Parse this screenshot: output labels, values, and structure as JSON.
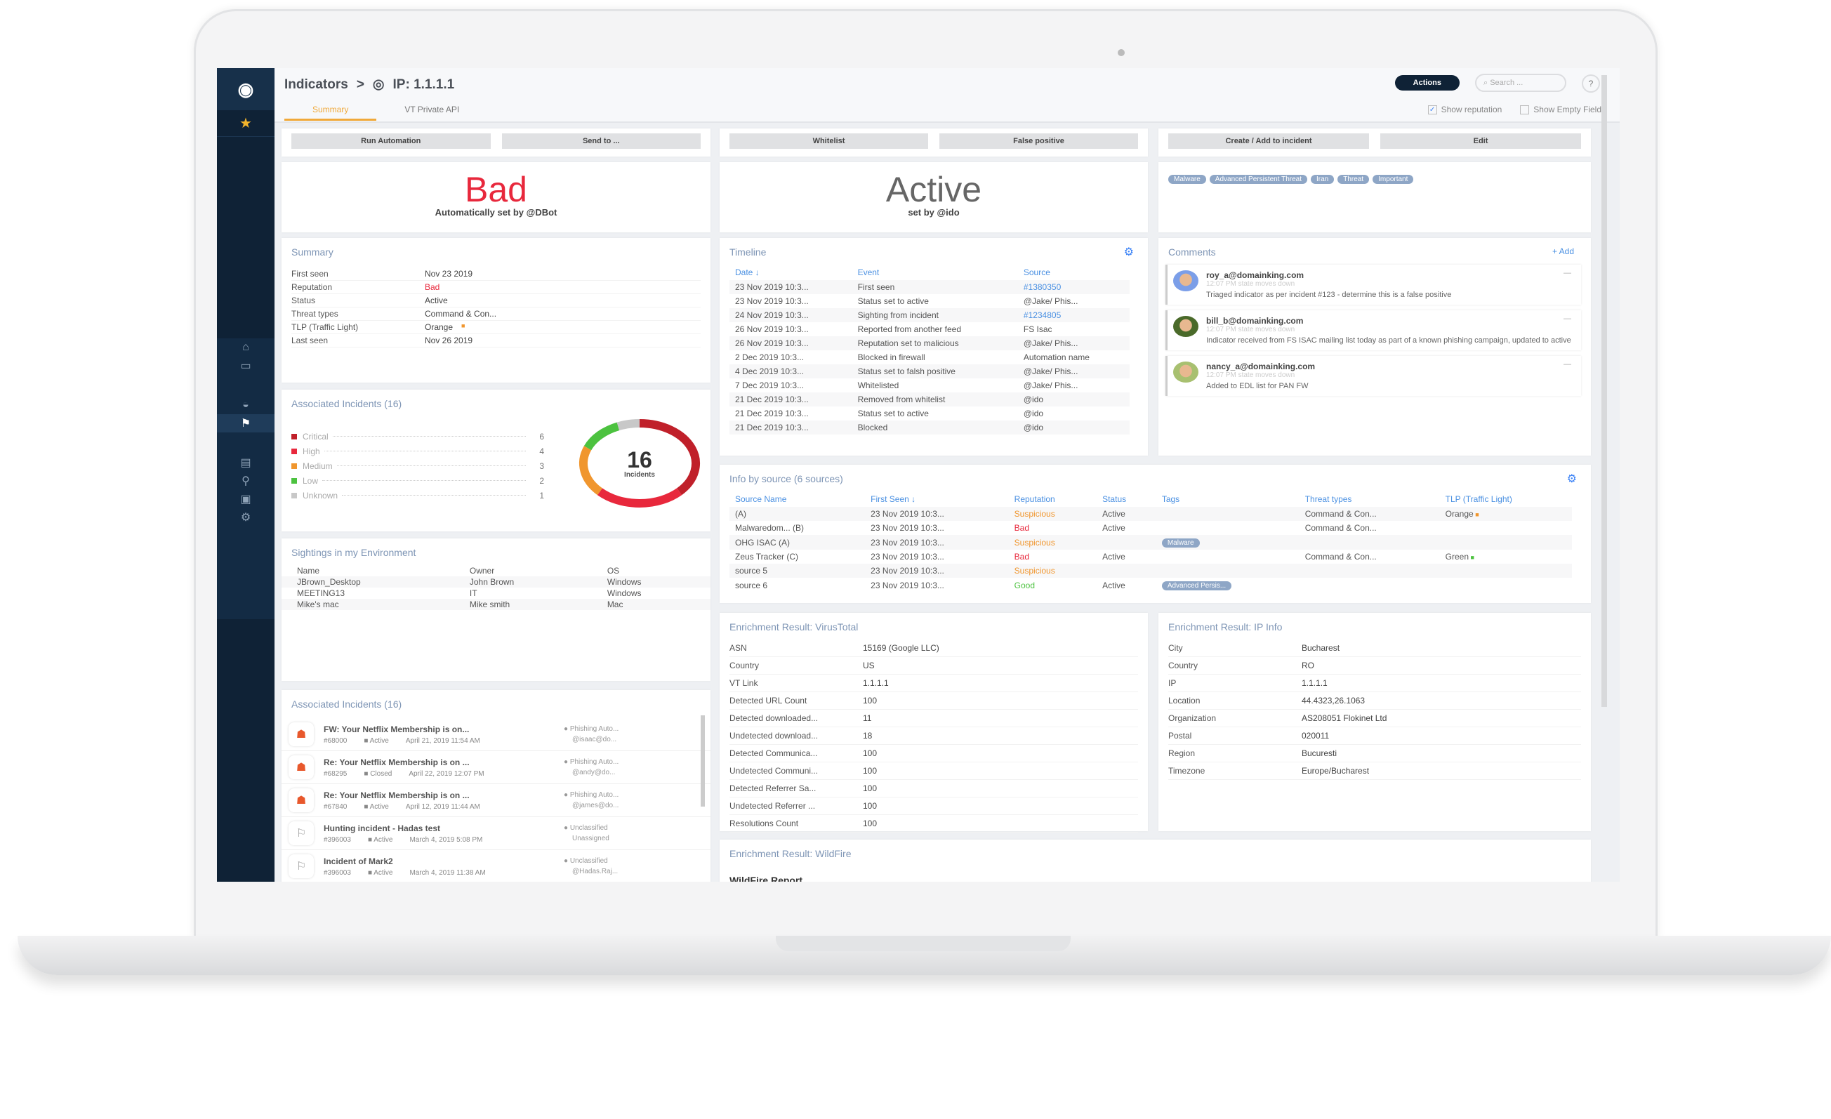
{
  "header": {
    "breadcrumb_root": "Indicators",
    "breadcrumb_sep": ">",
    "indicator": "IP: 1.1.1.1",
    "tabs": [
      {
        "label": "Summary"
      },
      {
        "label": "VT Private API"
      }
    ],
    "actions_label": "Actions",
    "search_placeholder": "Search ...",
    "help": "?",
    "show_reputation": "Show reputation",
    "show_empty_fields": "Show Empty Fields"
  },
  "buttons": {
    "run_automation": "Run Automation",
    "send_to": "Send to ...",
    "whitelist": "Whitelist",
    "false_positive": "False positive",
    "create_add": "Create / Add to incident",
    "edit": "Edit"
  },
  "verdict": {
    "reputation": "Bad",
    "reputation_by": "Automatically set by @DBot",
    "status": "Active",
    "status_by": "set by @ido",
    "reputation_color": "#e8283c"
  },
  "tags": [
    "Malware",
    "Advanced Persistent Threat",
    "Iran",
    "Threat",
    "Important"
  ],
  "summary": {
    "title": "Summary",
    "rows": [
      [
        "First seen",
        "Nov 23 2019"
      ],
      [
        "Reputation",
        "Bad"
      ],
      [
        "Status",
        "Active"
      ],
      [
        "Threat types",
        "Command & Con..."
      ],
      [
        "TLP (Traffic Light)",
        "Orange"
      ],
      [
        "Last seen",
        "Nov 26 2019"
      ]
    ]
  },
  "incidents_chart": {
    "title": "Associated Incidents  (16)",
    "total": "16",
    "total_label": "Incidents",
    "chart_data": {
      "type": "pie",
      "categories": [
        "Critical",
        "High",
        "Medium",
        "Low",
        "Unknown"
      ],
      "values": [
        6,
        4,
        3,
        2,
        1
      ],
      "colors": [
        "#c0202a",
        "#e8283c",
        "#f0962e",
        "#4cc23f",
        "#c8c8c8"
      ]
    }
  },
  "sightings": {
    "title": "Sightings in my Environment",
    "columns": [
      "Name",
      "Owner",
      "OS"
    ],
    "rows": [
      [
        "JBrown_Desktop",
        "John Brown",
        "Windows"
      ],
      [
        "MEETING13",
        "IT",
        "Windows"
      ],
      [
        "Mike's mac",
        "Mike smith",
        "Mac"
      ]
    ]
  },
  "incidents_list": {
    "title": "Associated Incidents  (16)",
    "items": [
      {
        "name": "FW: Your Netflix Membership is on...",
        "id": "#68000",
        "status": "Active",
        "date": "April 21, 2019 11:54 AM",
        "type": "Phishing Auto...",
        "owner": "@isaac@do...",
        "kind": "phishing"
      },
      {
        "name": "Re: Your Netflix Membership is on ...",
        "id": "#68295",
        "status": "Closed",
        "date": "April 22, 2019 12:07 PM",
        "type": "Phishing Auto...",
        "owner": "@andy@do...",
        "kind": "phishing"
      },
      {
        "name": "Re: Your Netflix Membership is on ...",
        "id": "#67840",
        "status": "Active",
        "date": "April 12, 2019 11:44 AM",
        "type": "Phishing Auto...",
        "owner": "@james@do...",
        "kind": "phishing"
      },
      {
        "name": "Hunting incident - Hadas test",
        "id": "#396003",
        "status": "Active",
        "date": "March 4, 2019 5:08 PM",
        "type": "Unclassified",
        "owner": "Unassigned",
        "kind": "other"
      },
      {
        "name": "Incident of Mark2",
        "id": "#396003",
        "status": "Active",
        "date": "March 4, 2019 11:38 AM",
        "type": "Unclassified",
        "owner": "@Hadas.Raj...",
        "kind": "other"
      }
    ]
  },
  "timeline": {
    "title": "Timeline",
    "columns": [
      "Date",
      "Event",
      "Source"
    ],
    "rows": [
      [
        "23 Nov 2019 10:3...",
        "First seen",
        "#1380350"
      ],
      [
        "23 Nov 2019 10:3...",
        "Status set to active",
        "@Jake/ Phis..."
      ],
      [
        "24 Nov 2019 10:3...",
        "Sighting from incident",
        "#1234805"
      ],
      [
        "26 Nov 2019 10:3...",
        "Reported from another feed",
        "FS Isac"
      ],
      [
        "26 Nov 2019 10:3...",
        "Reputation set to malicious",
        "@Jake/ Phis..."
      ],
      [
        "2 Dec 2019 10:3...",
        "Blocked in firewall",
        "Automation name"
      ],
      [
        "4 Dec 2019 10:3...",
        "Status set to falsh positive",
        "@Jake/ Phis..."
      ],
      [
        "7 Dec 2019 10:3...",
        "Whitelisted",
        "@Jake/ Phis..."
      ],
      [
        "21 Dec 2019 10:3...",
        "Removed from whitelist",
        "@ido"
      ],
      [
        "21 Dec 2019 10:3...",
        "Status set to active",
        "@ido"
      ],
      [
        "21 Dec 2019 10:3...",
        "Blocked",
        "@ido"
      ]
    ]
  },
  "info_by_source": {
    "title": "Info by source  (6 sources)",
    "columns": [
      "Source Name",
      "First Seen",
      "Reputation",
      "Status",
      "Tags",
      "Threat types",
      "TLP (Traffic Light)"
    ],
    "rows": [
      [
        "(A)",
        "23 Nov 2019 10:3...",
        "Suspicious",
        "Active",
        "",
        "Command & Con...",
        "Orange"
      ],
      [
        "Malwaredom... (B)",
        "23 Nov 2019 10:3...",
        "Bad",
        "Active",
        "",
        "Command & Con...",
        ""
      ],
      [
        "OHG ISAC (A)",
        "23 Nov 2019 10:3...",
        "Suspicious",
        "",
        "Malware",
        "",
        ""
      ],
      [
        "Zeus Tracker (C)",
        "23 Nov 2019 10:3...",
        "Bad",
        "Active",
        "",
        "Command & Con...",
        "Green"
      ],
      [
        "source 5",
        "23 Nov 2019 10:3...",
        "Suspicious",
        "",
        "",
        "",
        ""
      ],
      [
        "source 6",
        "23 Nov 2019 10:3...",
        "Good",
        "Active",
        "Advanced Persis...",
        "",
        ""
      ]
    ]
  },
  "comments": {
    "title": "Comments",
    "add": "+ Add",
    "items": [
      {
        "user": "roy_a@domainking.com",
        "time": "12:07 PM state moves down",
        "text": "Triaged indicator as per incident #123 - determine this is a false positive"
      },
      {
        "user": "bill_b@domainking.com",
        "time": "12:07 PM state moves down",
        "text": "Indicator received from FS ISAC mailing list today as part of a known phishing campaign, updated to active"
      },
      {
        "user": "nancy_a@domainking.com",
        "time": "12:07 PM state moves down",
        "text": "Added to EDL list for PAN FW"
      }
    ]
  },
  "vt": {
    "title": "Enrichment Result: VirusTotal",
    "rows": [
      [
        "ASN",
        "15169 (Google LLC)"
      ],
      [
        "Country",
        "US"
      ],
      [
        "VT Link",
        "1.1.1.1"
      ],
      [
        "Detected URL Count",
        "100"
      ],
      [
        "Detected downloaded...",
        "11"
      ],
      [
        "Undetected download...",
        "18"
      ],
      [
        "Detected Communica...",
        "100"
      ],
      [
        "Undetected Communi...",
        "100"
      ],
      [
        "Detected Referrer Sa...",
        "100"
      ],
      [
        "Undetected Referrer ...",
        "100"
      ],
      [
        "Resolutions Count",
        "100"
      ]
    ]
  },
  "ipinfo": {
    "title": "Enrichment Result: IP Info",
    "rows": [
      [
        "City",
        "Bucharest"
      ],
      [
        "Country",
        "RO"
      ],
      [
        "IP",
        "1.1.1.1"
      ],
      [
        "Location",
        "44.4323,26.1063"
      ],
      [
        "Organization",
        "AS208051 Flokinet Ltd"
      ],
      [
        "Postal",
        "020011"
      ],
      [
        "Region",
        "Bucuresti"
      ],
      [
        "Timezone",
        "Europe/Bucharest"
      ]
    ]
  },
  "wildfire": {
    "title": "Enrichment Result: WildFire",
    "report": "WildFire Report"
  },
  "colors": {
    "bad": "#e8283c",
    "suspicious": "#f0962e",
    "good": "#4cc23f",
    "link": "#4a90e2",
    "sidebar": "#0f2236"
  }
}
